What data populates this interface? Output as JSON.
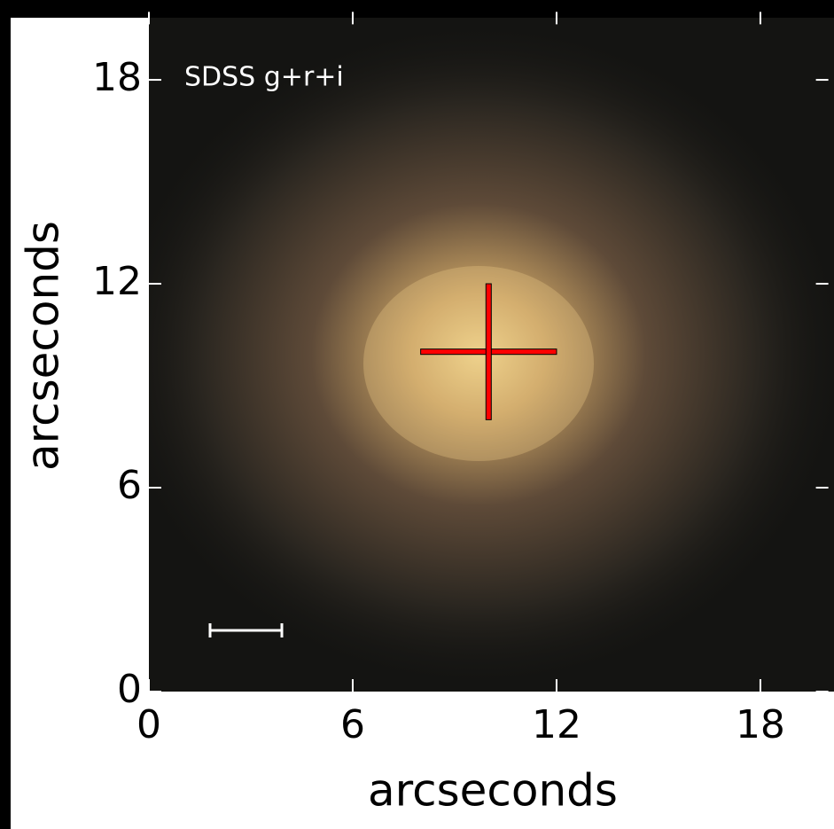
{
  "chart_data": {
    "type": "image",
    "annotation": "SDSS g+r+i",
    "xlabel": "arcseconds",
    "ylabel": "arcseconds",
    "xlim": [
      0,
      20
    ],
    "ylim": [
      0,
      20
    ],
    "xticks": [
      0,
      6,
      12,
      18
    ],
    "yticks": [
      0,
      6,
      12,
      18
    ],
    "marker": {
      "x": 10,
      "y": 10,
      "color": "#ff0000"
    }
  }
}
